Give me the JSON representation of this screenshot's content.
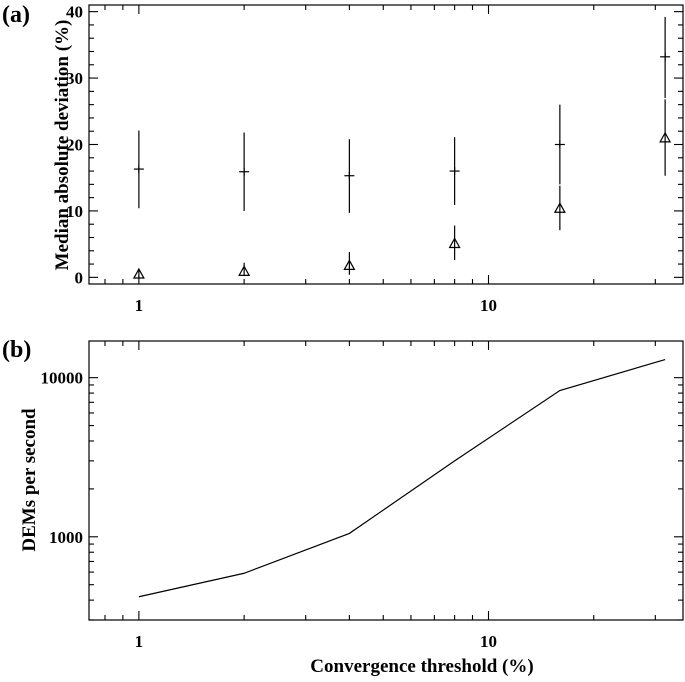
{
  "chart_data": [
    {
      "panel": "(a)",
      "type": "scatter",
      "xscale": "log",
      "xlim": [
        0.72,
        36
      ],
      "ylim": [
        -1,
        41
      ],
      "xticks": [
        1,
        10
      ],
      "yticks": [
        0,
        10,
        20,
        30,
        40
      ],
      "ylabel": "Median absolute deviation (%)",
      "xlabel": "",
      "grid": false,
      "series": [
        {
          "marker": "plus",
          "points": [
            {
              "x": 1,
              "y": 16.3,
              "lo": 10.4,
              "hi": 22.1
            },
            {
              "x": 2,
              "y": 15.9,
              "lo": 10.0,
              "hi": 21.8
            },
            {
              "x": 4,
              "y": 15.3,
              "lo": 9.7,
              "hi": 20.8
            },
            {
              "x": 8,
              "y": 16.0,
              "lo": 10.9,
              "hi": 21.1
            },
            {
              "x": 16,
              "y": 20.0,
              "lo": 14.0,
              "hi": 26.0
            },
            {
              "x": 32,
              "y": 33.2,
              "lo": 27.0,
              "hi": 39.2
            }
          ]
        },
        {
          "marker": "triangle",
          "points": [
            {
              "x": 1,
              "y": 0.5,
              "lo": 0.0,
              "hi": 1.1
            },
            {
              "x": 2,
              "y": 0.9,
              "lo": 0.2,
              "hi": 2.2
            },
            {
              "x": 4,
              "y": 1.8,
              "lo": 0.4,
              "hi": 3.8
            },
            {
              "x": 8,
              "y": 5.1,
              "lo": 2.6,
              "hi": 7.8
            },
            {
              "x": 16,
              "y": 10.4,
              "lo": 7.1,
              "hi": 13.8
            },
            {
              "x": 32,
              "y": 21.0,
              "lo": 15.3,
              "hi": 26.8
            }
          ]
        }
      ]
    },
    {
      "panel": "(b)",
      "type": "line",
      "xscale": "log",
      "yscale": "log",
      "xlim": [
        0.72,
        36
      ],
      "ylim": [
        300,
        17000
      ],
      "xticks": [
        1,
        10
      ],
      "yticks": [
        1000,
        10000
      ],
      "ylabel": "DEMs per second",
      "xlabel": "Convergence threshold (%)",
      "grid": false,
      "series": [
        {
          "x": [
            1,
            2,
            4,
            8,
            16,
            32
          ],
          "y": [
            420,
            590,
            1050,
            3000,
            8300,
            13000
          ]
        }
      ]
    }
  ]
}
